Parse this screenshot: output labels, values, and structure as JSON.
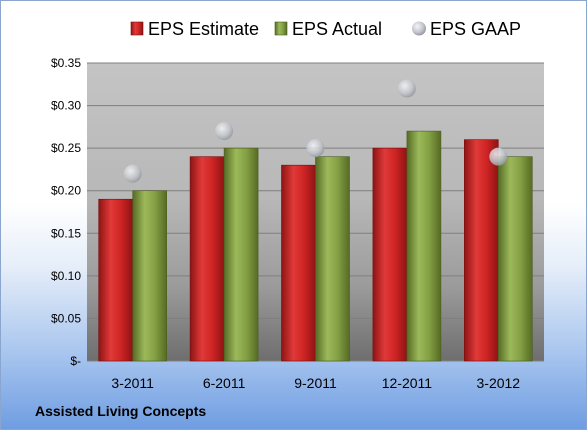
{
  "chart_data": {
    "type": "bar",
    "categories": [
      "3-2011",
      "6-2011",
      "9-2011",
      "12-2011",
      "3-2012"
    ],
    "series": [
      {
        "name": "EPS Estimate",
        "kind": "bar",
        "color": "#c8201f",
        "values": [
          0.19,
          0.24,
          0.23,
          0.25,
          0.26
        ]
      },
      {
        "name": "EPS Actual",
        "kind": "bar",
        "color": "#7e9a3c",
        "values": [
          0.2,
          0.25,
          0.24,
          0.27,
          0.24
        ]
      },
      {
        "name": "EPS GAAP",
        "kind": "marker",
        "color": "#b8bcc4",
        "values": [
          0.22,
          0.27,
          0.25,
          0.32,
          0.24
        ]
      }
    ],
    "yticks": [
      "$-",
      "$0.05",
      "$0.10",
      "$0.15",
      "$0.20",
      "$0.25",
      "$0.30",
      "$0.35"
    ],
    "ylim": [
      0,
      0.35
    ],
    "grid": true,
    "legend_position": "top"
  },
  "footer": {
    "company": "Assisted Living Concepts"
  }
}
